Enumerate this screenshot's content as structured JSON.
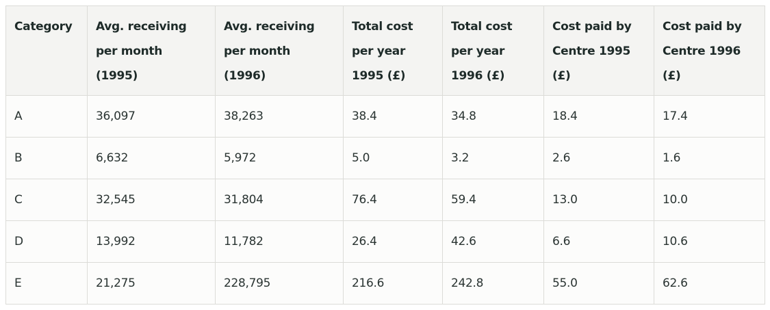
{
  "table": {
    "header": [
      [
        "Category"
      ],
      [
        "Avg. receiving",
        "per month",
        "(1995)"
      ],
      [
        "Avg. receiving",
        "per month",
        "(1996)"
      ],
      [
        "Total cost",
        "per year",
        "1995 (£)"
      ],
      [
        "Total cost",
        "per year",
        "1996 (£)"
      ],
      [
        "Cost paid by",
        "Centre 1995",
        "(£)"
      ],
      [
        "Cost paid by",
        "Centre 1996",
        "(£)"
      ]
    ],
    "rows": [
      [
        "A",
        "36,097",
        "38,263",
        "38.4",
        "34.8",
        "18.4",
        "17.4"
      ],
      [
        "B",
        "6,632",
        "5,972",
        "5.0",
        "3.2",
        "2.6",
        "1.6"
      ],
      [
        "C",
        "32,545",
        "31,804",
        "76.4",
        "59.4",
        "13.0",
        "10.0"
      ],
      [
        "D",
        "13,992",
        "11,782",
        "26.4",
        "42.6",
        "6.6",
        "10.6"
      ],
      [
        "E",
        "21,275",
        "228,795",
        "216.6",
        "242.8",
        "55.0",
        "62.6"
      ]
    ]
  }
}
